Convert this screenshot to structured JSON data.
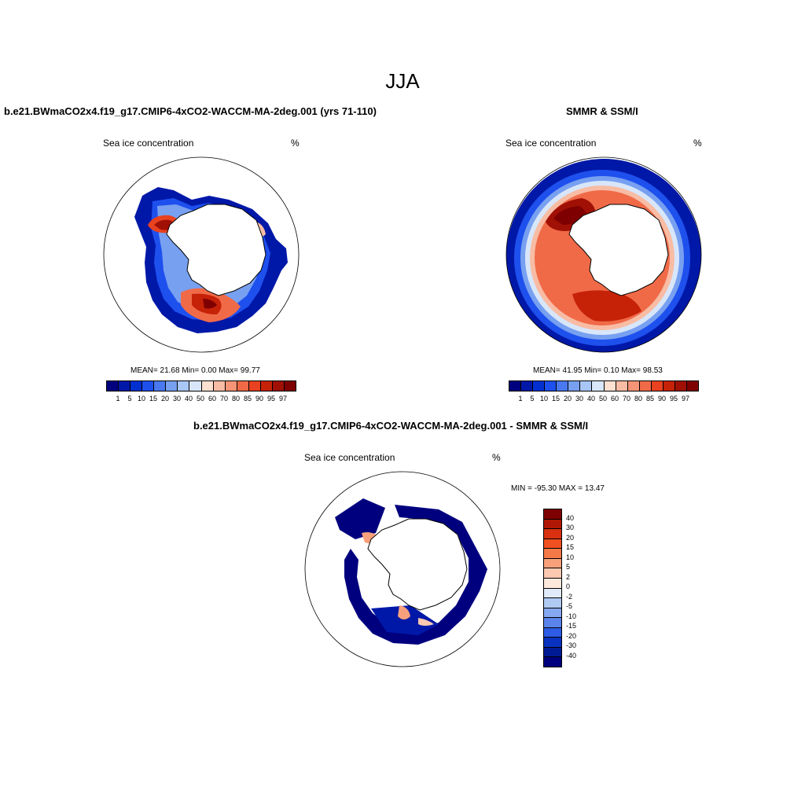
{
  "title": "JJA",
  "panels": {
    "model": {
      "title": "b.e21.BWmaCO2x4.f19_g17.CMIP6-4xCO2-WACCM-MA-2deg.001 (yrs 71-110)",
      "variable": "Sea ice concentration",
      "units": "%",
      "stats": "MEAN=  21.68  Min=   0.00  Max=  99.77"
    },
    "obs": {
      "title": "SMMR & SSM/I",
      "variable": "Sea ice concentration",
      "units": "%",
      "stats": "MEAN=  41.95  Min=   0.10  Max=  98.53"
    },
    "diff": {
      "title": "b.e21.BWmaCO2x4.f19_g17.CMIP6-4xCO2-WACCM-MA-2deg.001 - SMMR & SSM/I",
      "variable": "Sea ice concentration",
      "units": "%",
      "stats": "MIN = -95.30 MAX =  13.47"
    }
  },
  "colorbar_abs": {
    "labels": [
      "1",
      "5",
      "10",
      "15",
      "20",
      "30",
      "40",
      "50",
      "60",
      "70",
      "80",
      "85",
      "90",
      "95",
      "97"
    ],
    "colors": [
      "#00007f",
      "#0018a8",
      "#0030d0",
      "#1e50ee",
      "#4a78ee",
      "#78a0f0",
      "#a8c6f6",
      "#d8e6fa",
      "#fde0d0",
      "#f8bca4",
      "#f59476",
      "#f06a48",
      "#e84220",
      "#c62208",
      "#a01005",
      "#7f0000"
    ]
  },
  "colorbar_diff": {
    "labels": [
      "40",
      "30",
      "20",
      "15",
      "10",
      "5",
      "2",
      "0",
      "-2",
      "-5",
      "-10",
      "-15",
      "-20",
      "-30",
      "-40"
    ],
    "colors": [
      "#7f0000",
      "#b01805",
      "#d83010",
      "#f05020",
      "#f57848",
      "#f8a07c",
      "#fbc8b0",
      "#fde8dc",
      "#e0eaf8",
      "#b0caf4",
      "#86a8f0",
      "#5a84ec",
      "#2e5ce6",
      "#0a32c0",
      "#001a96",
      "#00007f"
    ]
  }
}
